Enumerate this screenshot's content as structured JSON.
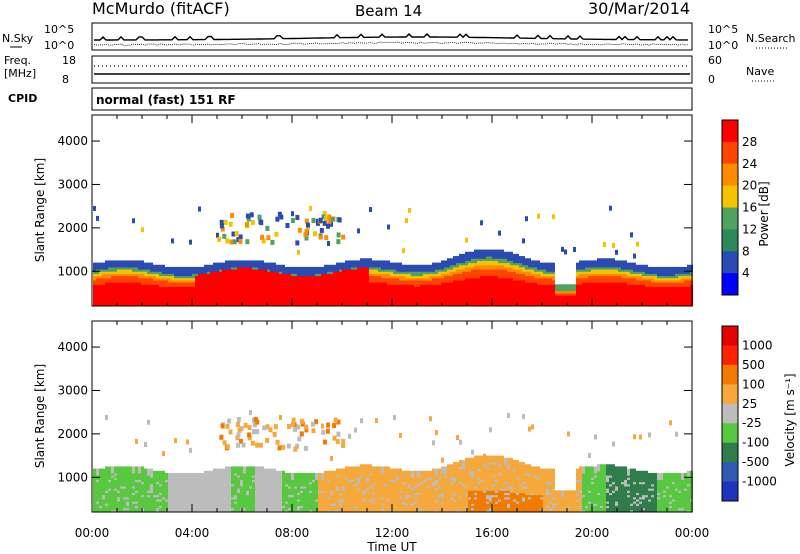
{
  "header": {
    "station": "McMurdo (fitACF)",
    "beam": "Beam 14",
    "date": "30/Mar/2014"
  },
  "panels": {
    "nsky": {
      "left_label": "N.Sky",
      "right_label": "N.Search",
      "left_ticks": [
        "10^5",
        "10^0"
      ],
      "right_ticks": [
        "10^5",
        "10^0"
      ]
    },
    "freq": {
      "left_label_1": "Freq.",
      "left_label_2": "[MHz]",
      "right_label": "Nave",
      "left_ticks": [
        "18",
        "8"
      ],
      "right_ticks": [
        "60",
        "0"
      ]
    },
    "cpid": {
      "label": "CPID",
      "value": "normal (fast) 151 RF"
    }
  },
  "chart_data": [
    {
      "type": "heatmap",
      "name": "Power",
      "xlabel": "",
      "ylabel": "Slant Range [km]",
      "x_ticks": [
        "00:00",
        "04:00",
        "08:00",
        "12:00",
        "16:00",
        "20:00",
        "00:00"
      ],
      "y_ticks": [
        "1000",
        "2000",
        "3000",
        "4000"
      ],
      "ylim": [
        200,
        4600
      ],
      "colorbar_label": "Power [dB]",
      "colorbar_ticks": [
        "28",
        "24",
        "20",
        "16",
        "12",
        "8",
        "4"
      ],
      "colors": [
        "#0000ff",
        "#2a4ab4",
        "#2a8a5a",
        "#4fa25f",
        "#f5c400",
        "#ff8c00",
        "#ff4400",
        "#ff0000"
      ]
    },
    {
      "type": "heatmap",
      "name": "Velocity",
      "xlabel": "Time UT",
      "ylabel": "Slant Range [km]",
      "x_ticks": [
        "00:00",
        "04:00",
        "08:00",
        "12:00",
        "16:00",
        "20:00",
        "00:00"
      ],
      "y_ticks": [
        "1000",
        "2000",
        "3000",
        "4000"
      ],
      "ylim": [
        200,
        4600
      ],
      "colorbar_label": "Velocity [m s⁻¹]",
      "colorbar_ticks": [
        "1000",
        "500",
        "100",
        "25",
        "-25",
        "-100",
        "-500",
        "-1000"
      ],
      "colors": [
        "#2233bb",
        "#2f5ab0",
        "#2e7d4a",
        "#58c840",
        "#bcbcbc",
        "#f5a83c",
        "#f07b00",
        "#ff2200",
        "#e60000"
      ]
    }
  ]
}
